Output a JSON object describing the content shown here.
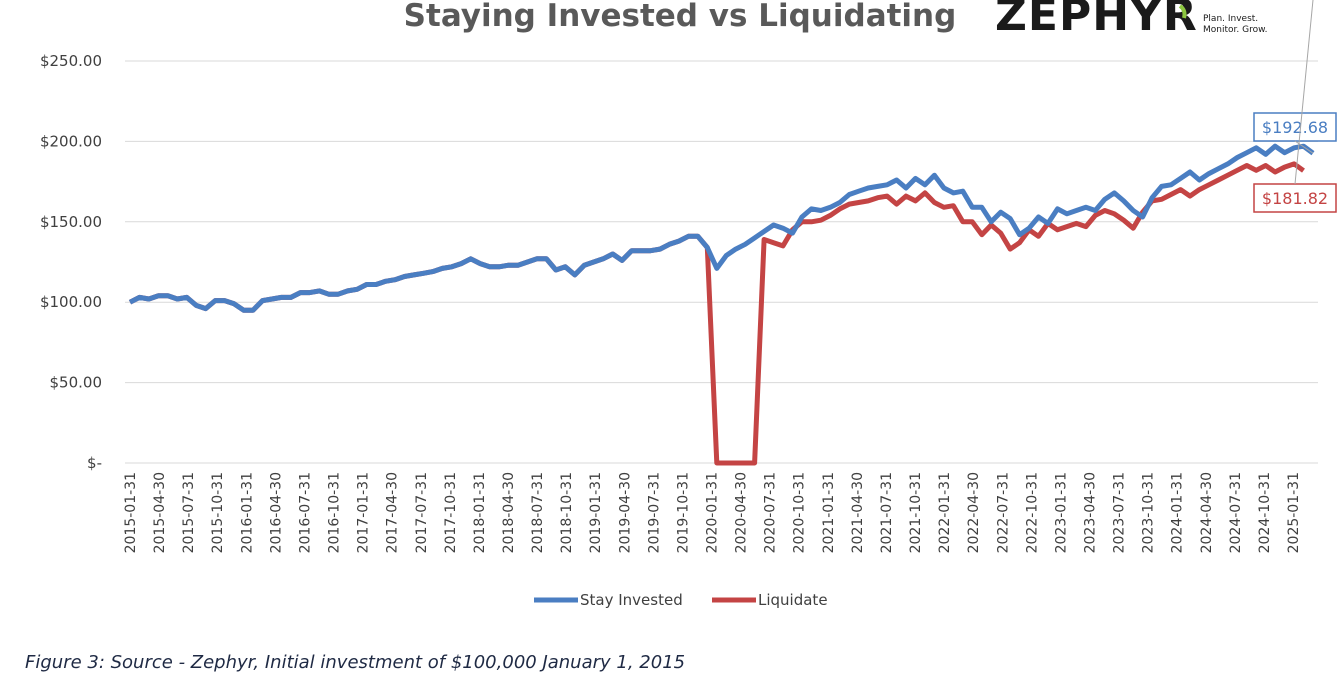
{
  "chart_data": {
    "type": "line",
    "title": "Staying Invested vs Liquidating",
    "xlabel": "",
    "ylabel": "",
    "ylim": [
      0,
      250
    ],
    "yticks": [
      0,
      50,
      100,
      150,
      200,
      250
    ],
    "ytick_labels": [
      "$-",
      "$50.00",
      "$100.00",
      "$150.00",
      "$200.00",
      "$250.00"
    ],
    "grid": true,
    "legend_position": "bottom-center",
    "x_tick_labels": [
      "2015-01-31",
      "2015-04-30",
      "2015-07-31",
      "2015-10-31",
      "2016-01-31",
      "2016-04-30",
      "2016-07-31",
      "2016-10-31",
      "2017-01-31",
      "2017-04-30",
      "2017-07-31",
      "2017-10-31",
      "2018-01-31",
      "2018-04-30",
      "2018-07-31",
      "2018-10-31",
      "2019-01-31",
      "2019-04-30",
      "2019-07-31",
      "2019-10-31",
      "2020-01-31",
      "2020-04-30",
      "2020-07-31",
      "2020-10-31",
      "2021-01-31",
      "2021-04-30",
      "2021-07-31",
      "2021-10-31",
      "2022-01-31",
      "2022-04-30",
      "2022-07-31",
      "2022-10-31",
      "2023-01-31",
      "2023-04-30",
      "2023-07-31",
      "2023-10-31",
      "2024-01-31",
      "2024-04-30",
      "2024-07-31",
      "2024-10-31",
      "2025-01-31"
    ],
    "series": [
      {
        "name": "Stay Invested",
        "color": "#4a7ec2",
        "values": [
          100,
          103,
          102,
          104,
          104,
          102,
          103,
          98,
          96,
          101,
          101,
          99,
          95,
          95,
          101,
          102,
          103,
          103,
          106,
          106,
          107,
          105,
          105,
          107,
          108,
          111,
          111,
          113,
          114,
          116,
          117,
          118,
          119,
          121,
          122,
          124,
          127,
          124,
          122,
          122,
          123,
          123,
          125,
          127,
          127,
          120,
          122,
          117,
          123,
          125,
          127,
          130,
          126,
          132,
          132,
          132,
          133,
          136,
          138,
          141,
          141,
          134,
          121,
          129,
          133,
          136,
          140,
          144,
          148,
          146,
          143,
          153,
          158,
          157,
          159,
          162,
          167,
          169,
          171,
          172,
          173,
          176,
          171,
          177,
          173,
          179,
          171,
          168,
          169,
          159,
          159,
          150,
          156,
          152,
          142,
          146,
          153,
          149,
          158,
          155,
          157,
          159,
          157,
          164,
          168,
          163,
          157,
          153,
          165,
          172,
          173,
          177,
          181,
          176,
          180,
          183,
          186,
          190,
          193,
          196,
          192,
          197,
          193,
          196,
          197,
          192.68
        ],
        "end_label": "$192.68"
      },
      {
        "name": "Liquidate",
        "color": "#c44444",
        "values": [
          100,
          103,
          102,
          104,
          104,
          102,
          103,
          98,
          96,
          101,
          101,
          99,
          95,
          95,
          101,
          102,
          103,
          103,
          106,
          106,
          107,
          105,
          105,
          107,
          108,
          111,
          111,
          113,
          114,
          116,
          117,
          118,
          119,
          121,
          122,
          124,
          127,
          124,
          122,
          122,
          123,
          123,
          125,
          127,
          127,
          120,
          122,
          117,
          123,
          125,
          127,
          130,
          126,
          132,
          132,
          132,
          133,
          136,
          138,
          141,
          141,
          134,
          0,
          0,
          0,
          0,
          0,
          139,
          137,
          135,
          145,
          150,
          150,
          151,
          154,
          158,
          161,
          162,
          163,
          165,
          166,
          161,
          166,
          163,
          168,
          162,
          159,
          160,
          150,
          150,
          142,
          148,
          143,
          133,
          137,
          145,
          141,
          149,
          145,
          147,
          149,
          147,
          154,
          157,
          155,
          151,
          146,
          156,
          163,
          164,
          167,
          170,
          166,
          170,
          173,
          176,
          179,
          182,
          185,
          182,
          185,
          181,
          184,
          186,
          181.82
        ],
        "end_label": "$181.82"
      }
    ]
  },
  "logo": {
    "wordmark": "ZEPHYR",
    "tagline_line1": "Plan. Invest.",
    "tagline_line2": "Monitor. Grow."
  },
  "caption": "Figure 3: Source - Zephyr, Initial investment of $100,000 January 1, 2015"
}
